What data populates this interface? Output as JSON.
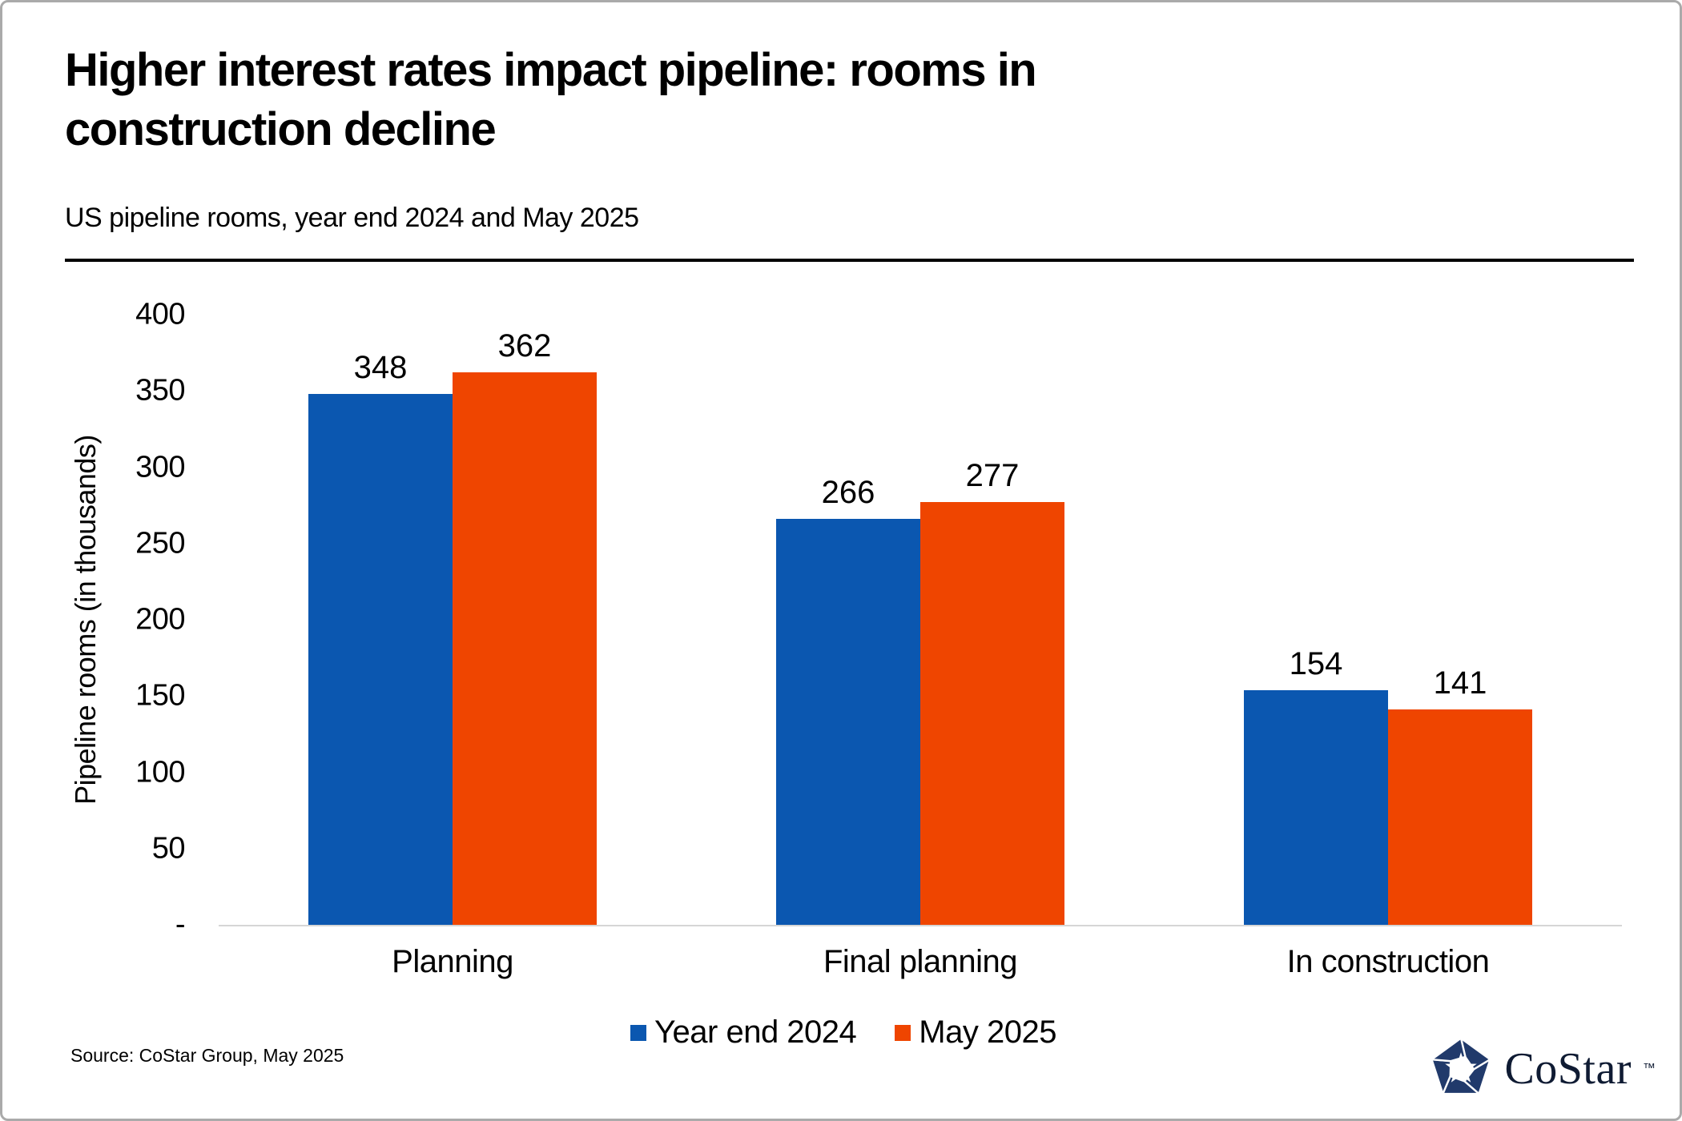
{
  "chart_data": {
    "type": "bar",
    "title": "Higher interest rates impact pipeline: rooms in construction decline",
    "subtitle": "US pipeline rooms, year end 2024 and May 2025",
    "categories": [
      "Planning",
      "Final planning",
      "In construction"
    ],
    "series": [
      {
        "name": "Year end 2024",
        "color": "#0B57B0",
        "values": [
          348,
          266,
          154
        ]
      },
      {
        "name": "May 2025",
        "color": "#EF4500",
        "values": [
          362,
          277,
          141
        ]
      }
    ],
    "xlabel": "",
    "ylabel": "Pipeline rooms (in thousands)",
    "ylim": [
      0,
      400
    ],
    "yticks": [
      {
        "label": "400",
        "value": 400
      },
      {
        "label": "350",
        "value": 350
      },
      {
        "label": "300",
        "value": 300
      },
      {
        "label": "250",
        "value": 250
      },
      {
        "label": "200",
        "value": 200
      },
      {
        "label": "150",
        "value": 150
      },
      {
        "label": "100",
        "value": 100
      },
      {
        "label": "50",
        "value": 50
      },
      {
        "label": "-",
        "value": 0
      }
    ],
    "grid": false,
    "legend_position": "bottom",
    "bar_value_labels": true
  },
  "footer": {
    "source": "Source: CoStar Group, May 2025",
    "logo_text": "CoStar",
    "logo_tm": "™"
  },
  "colors": {
    "series_blue": "#0B57B0",
    "series_orange": "#EF4500",
    "axis_line": "#D6D6D6",
    "divider": "#000000",
    "logo_navy": "#213A6B",
    "logo_text_navy": "#0F1B33"
  }
}
